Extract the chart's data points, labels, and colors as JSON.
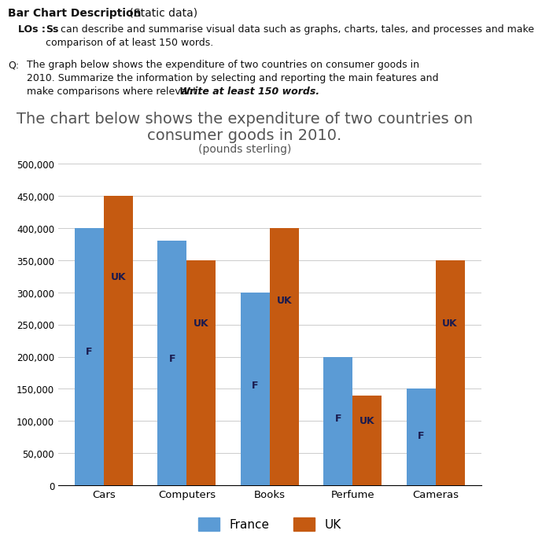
{
  "categories": [
    "Cars",
    "Computers",
    "Books",
    "Perfume",
    "Cameras"
  ],
  "france_values": [
    400000,
    380000,
    300000,
    200000,
    150000
  ],
  "uk_values": [
    450000,
    350000,
    400000,
    140000,
    350000
  ],
  "france_color": "#5b9bd5",
  "uk_color": "#c55a11",
  "header_title_bold": "Bar Chart Description",
  "header_title_normal": " (Static data)",
  "los_bold": "LOs : Ss",
  "los_normal": " can describe and summarise visual data such as graphs, charts, tales, and processes and make\n        comparison of at least 150 words.",
  "q_bold": "Q:",
  "q_normal": " The graph below shows the expenditure of two countries on consumer goods in\n    2010. Summarize the information by selecting and reporting the main features and\n    make comparisons where relevant. ",
  "q_italic_bold": "Write at least 150 words.",
  "chart_title_line1": "The chart below shows the expenditure of two countries on",
  "chart_title_line2": "consumer goods in 2010.",
  "chart_subtitle": "(pounds sterling)",
  "ylim": [
    0,
    500000
  ],
  "yticks": [
    0,
    50000,
    100000,
    150000,
    200000,
    250000,
    300000,
    350000,
    400000,
    450000,
    500000
  ],
  "ytick_labels": [
    "0",
    "50,000",
    "100,000",
    "150,000",
    "200,000",
    "250,000",
    "300,000",
    "350,000",
    "400,000",
    "450,000",
    "500,000"
  ],
  "france_label": "France",
  "uk_label": "UK",
  "bar_label_france": "F",
  "bar_label_uk": "UK",
  "bar_label_color": "#1a1a4e",
  "background_color": "#ffffff",
  "bar_width": 0.35
}
